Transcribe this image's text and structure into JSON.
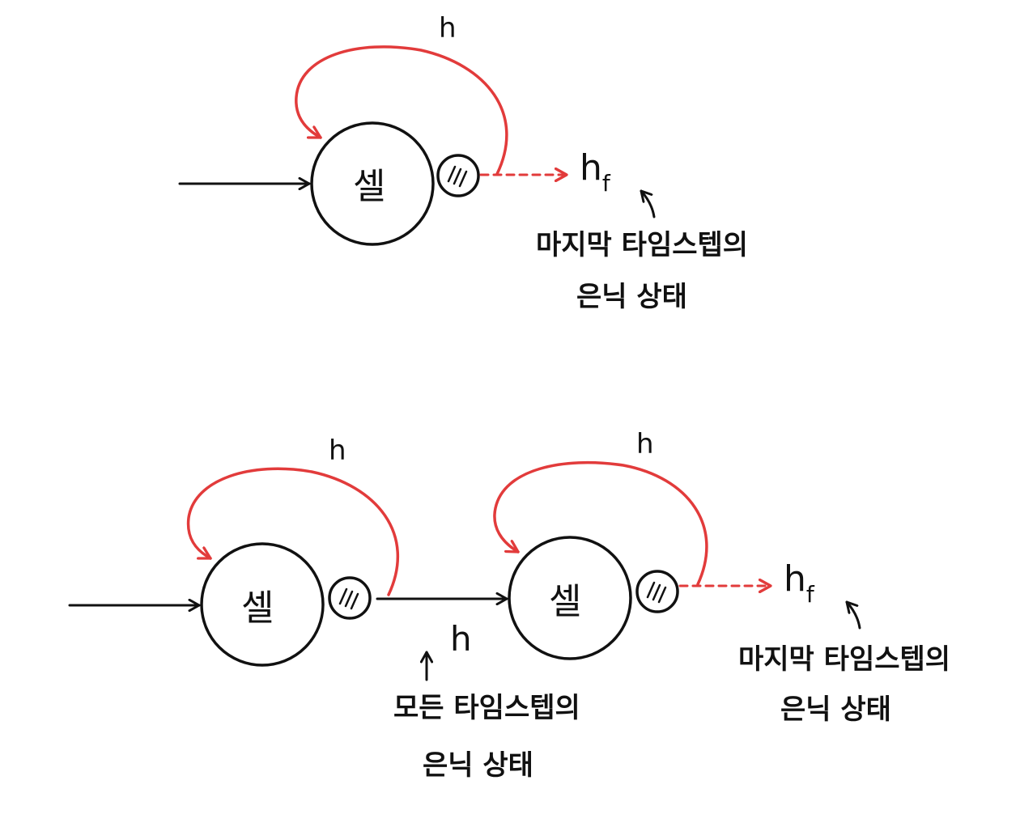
{
  "colors": {
    "ink": "#111111",
    "recurrent_arrow": "#e23b3b",
    "background": "#ffffff"
  },
  "top_diagram": {
    "cell_label": "셀",
    "recurrent_label": "h",
    "output_label": "h",
    "output_subscript": "f",
    "annotation_line1": "마지막 타임스텝의",
    "annotation_line2": "은닉 상태"
  },
  "bottom_diagram": {
    "cell1_label": "셀",
    "cell2_label": "셀",
    "recurrent_label_1": "h",
    "recurrent_label_2": "h",
    "between_label": "h",
    "between_annotation_line1": "모든 타임스텝의",
    "between_annotation_line2": "은닉 상태",
    "output_label": "h",
    "output_subscript": "f",
    "annotation_line1": "마지막 타임스텝의",
    "annotation_line2": "은닉 상태"
  }
}
